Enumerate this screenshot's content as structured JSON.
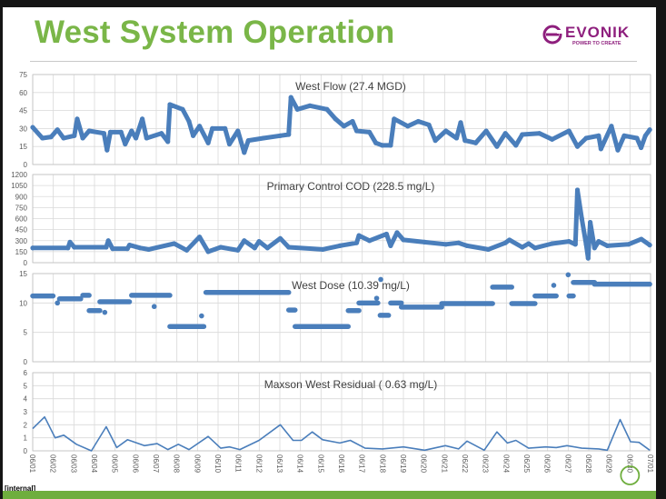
{
  "header": {
    "title": "West System Operation",
    "logo_word": "EVONIK",
    "logo_tagline": "POWER TO CREATE"
  },
  "footer": {
    "label": "[internal]"
  },
  "colors": {
    "series": "#4a7ebb",
    "title": "#7ab648",
    "brand": "#8e1f7d",
    "highlight": "#6fae3e"
  },
  "x_axis": {
    "labels": [
      "06/01",
      "06/02",
      "06/03",
      "06/04",
      "06/05",
      "06/06",
      "06/07",
      "06/08",
      "06/09",
      "06/10",
      "06/11",
      "06/12",
      "06/13",
      "06/14",
      "06/15",
      "06/16",
      "06/17",
      "06/18",
      "06/19",
      "06/20",
      "06/21",
      "06/22",
      "06/23",
      "06/24",
      "06/25",
      "06/26",
      "06/27",
      "06/28",
      "06/29",
      "06/30",
      "07/01"
    ],
    "highlighted": "06/30"
  },
  "chart_data": [
    {
      "type": "scatter",
      "title": "West Flow (27.4 MGD)",
      "ylim": [
        0,
        75
      ],
      "yticks": [
        "0",
        "15",
        "30",
        "45",
        "60",
        "75"
      ],
      "xunit": "days since 06/01",
      "points": [
        [
          0,
          31
        ],
        [
          0.47,
          22
        ],
        [
          0.89,
          23
        ],
        [
          1.2,
          29
        ],
        [
          1.5,
          22
        ],
        [
          2.02,
          24
        ],
        [
          2.16,
          38
        ],
        [
          2.43,
          22
        ],
        [
          2.74,
          28
        ],
        [
          3.46,
          26
        ],
        [
          3.61,
          12
        ],
        [
          3.77,
          27
        ],
        [
          4.29,
          27
        ],
        [
          4.49,
          17
        ],
        [
          4.8,
          28
        ],
        [
          5.01,
          22
        ],
        [
          5.32,
          38
        ],
        [
          5.53,
          22
        ],
        [
          6.25,
          26
        ],
        [
          6.56,
          19
        ],
        [
          6.66,
          50
        ],
        [
          7.28,
          46
        ],
        [
          7.59,
          36
        ],
        [
          7.79,
          24
        ],
        [
          8.1,
          32
        ],
        [
          8.52,
          18
        ],
        [
          8.72,
          30
        ],
        [
          9.34,
          30
        ],
        [
          9.55,
          17
        ],
        [
          9.96,
          28
        ],
        [
          10.27,
          10
        ],
        [
          10.47,
          20
        ],
        [
          11.2,
          22
        ],
        [
          12.02,
          24
        ],
        [
          12.43,
          25
        ],
        [
          12.54,
          56
        ],
        [
          12.85,
          46
        ],
        [
          13.46,
          49
        ],
        [
          14.29,
          46
        ],
        [
          14.7,
          38
        ],
        [
          15.11,
          32
        ],
        [
          15.53,
          36
        ],
        [
          15.73,
          28
        ],
        [
          16.35,
          27
        ],
        [
          16.66,
          18
        ],
        [
          16.97,
          16
        ],
        [
          17.38,
          16
        ],
        [
          17.55,
          38
        ],
        [
          18.21,
          32
        ],
        [
          18.72,
          36
        ],
        [
          19.24,
          33
        ],
        [
          19.55,
          20
        ],
        [
          20.06,
          28
        ],
        [
          20.58,
          22
        ],
        [
          20.78,
          35
        ],
        [
          20.99,
          20
        ],
        [
          21.51,
          18
        ],
        [
          22.02,
          28
        ],
        [
          22.54,
          15
        ],
        [
          22.95,
          26
        ],
        [
          23.46,
          16
        ],
        [
          23.77,
          25
        ],
        [
          24.6,
          26
        ],
        [
          25.22,
          21
        ],
        [
          26.04,
          28
        ],
        [
          26.45,
          15
        ],
        [
          26.87,
          22
        ],
        [
          27.48,
          24
        ],
        [
          27.59,
          13
        ],
        [
          28.1,
          32
        ],
        [
          28.41,
          12
        ],
        [
          28.72,
          24
        ],
        [
          29.34,
          22
        ],
        [
          29.54,
          14
        ],
        [
          29.75,
          24
        ],
        [
          29.96,
          29
        ]
      ]
    },
    {
      "type": "scatter",
      "title": "Primary Control COD (228.5 mg/L)",
      "ylim": [
        0,
        1200
      ],
      "yticks": [
        "0",
        "150",
        "300",
        "450",
        "600",
        "750",
        "900",
        "1050",
        "1200"
      ],
      "xunit": "days since 06/01",
      "points": [
        [
          0,
          200
        ],
        [
          1.71,
          200
        ],
        [
          1.81,
          280
        ],
        [
          2.02,
          210
        ],
        [
          3.57,
          210
        ],
        [
          3.67,
          300
        ],
        [
          3.88,
          190
        ],
        [
          4.6,
          190
        ],
        [
          4.7,
          240
        ],
        [
          5.22,
          200
        ],
        [
          5.63,
          180
        ],
        [
          6.87,
          260
        ],
        [
          7.48,
          170
        ],
        [
          8.1,
          350
        ],
        [
          8.52,
          150
        ],
        [
          9.13,
          210
        ],
        [
          9.96,
          170
        ],
        [
          10.27,
          300
        ],
        [
          10.78,
          200
        ],
        [
          10.99,
          290
        ],
        [
          11.4,
          200
        ],
        [
          12.02,
          330
        ],
        [
          12.43,
          210
        ],
        [
          14.08,
          180
        ],
        [
          14.91,
          230
        ],
        [
          15.73,
          270
        ],
        [
          15.84,
          370
        ],
        [
          16.35,
          300
        ],
        [
          17.18,
          390
        ],
        [
          17.38,
          230
        ],
        [
          17.69,
          410
        ],
        [
          18,
          310
        ],
        [
          19.03,
          280
        ],
        [
          20.06,
          250
        ],
        [
          20.68,
          270
        ],
        [
          21.09,
          230
        ],
        [
          22.12,
          180
        ],
        [
          22.95,
          270
        ],
        [
          23.15,
          310
        ],
        [
          23.77,
          210
        ],
        [
          24.08,
          260
        ],
        [
          24.39,
          200
        ],
        [
          25.22,
          260
        ],
        [
          26.04,
          290
        ],
        [
          26.35,
          250
        ],
        [
          26.45,
          990
        ],
        [
          26.66,
          600
        ],
        [
          26.87,
          250
        ],
        [
          26.97,
          60
        ],
        [
          27.07,
          550
        ],
        [
          27.28,
          200
        ],
        [
          27.48,
          290
        ],
        [
          27.9,
          230
        ],
        [
          28.93,
          250
        ],
        [
          29.55,
          320
        ],
        [
          29.96,
          240
        ]
      ]
    },
    {
      "type": "scatter",
      "title": "West Dose (10.39 mg/L)",
      "ylim": [
        0,
        15
      ],
      "yticks": [
        "0",
        "5",
        "10",
        "15"
      ],
      "xunit": "days since 06/01",
      "segments": [
        [
          0,
          0.99,
          11.2
        ],
        [
          1.3,
          2.33,
          10.7
        ],
        [
          2.43,
          2.74,
          11.3
        ],
        [
          2.74,
          3.26,
          8.7
        ],
        [
          3.26,
          4.7,
          10.2
        ],
        [
          4.8,
          6.66,
          11.3
        ],
        [
          6.66,
          8.31,
          6.0
        ],
        [
          8.41,
          12.43,
          11.8
        ],
        [
          12.43,
          12.74,
          8.8
        ],
        [
          12.74,
          15.32,
          6.0
        ],
        [
          15.32,
          15.84,
          8.7
        ],
        [
          15.84,
          16.76,
          10.0
        ],
        [
          16.87,
          17.28,
          7.9
        ],
        [
          17.38,
          17.9,
          10.0
        ],
        [
          17.9,
          19.86,
          9.3
        ],
        [
          19.86,
          22.33,
          9.9
        ],
        [
          22.33,
          23.26,
          12.7
        ],
        [
          23.26,
          24.39,
          9.9
        ],
        [
          24.39,
          25.42,
          11.2
        ],
        [
          26.04,
          26.25,
          11.2
        ],
        [
          26.25,
          27.28,
          13.5
        ],
        [
          27.28,
          29.96,
          13.2
        ]
      ],
      "outliers": [
        [
          26.0,
          14.8
        ],
        [
          16.9,
          14.0
        ],
        [
          16.7,
          10.8
        ],
        [
          5.9,
          9.4
        ],
        [
          3.5,
          8.4
        ],
        [
          8.2,
          7.8
        ],
        [
          1.2,
          10.0
        ],
        [
          25.3,
          13.0
        ]
      ]
    },
    {
      "type": "line",
      "title": "Maxson West Residual ( 0.63 mg/L)",
      "ylim": [
        0,
        6
      ],
      "yticks": [
        "0",
        "1",
        "2",
        "3",
        "4",
        "5",
        "6"
      ],
      "xunit": "days since 06/01",
      "points": [
        [
          0,
          1.7
        ],
        [
          0.58,
          2.6
        ],
        [
          1.09,
          1.0
        ],
        [
          1.51,
          1.2
        ],
        [
          2.12,
          0.5
        ],
        [
          2.85,
          0.0
        ],
        [
          3.57,
          1.85
        ],
        [
          4.08,
          0.25
        ],
        [
          4.6,
          0.85
        ],
        [
          5.42,
          0.4
        ],
        [
          6.04,
          0.55
        ],
        [
          6.56,
          0.1
        ],
        [
          7.07,
          0.5
        ],
        [
          7.59,
          0.1
        ],
        [
          8.52,
          1.1
        ],
        [
          9.13,
          0.2
        ],
        [
          9.55,
          0.3
        ],
        [
          10.06,
          0.1
        ],
        [
          10.99,
          0.8
        ],
        [
          12.02,
          2.0
        ],
        [
          12.64,
          0.8
        ],
        [
          13.05,
          0.8
        ],
        [
          13.57,
          1.45
        ],
        [
          14.08,
          0.85
        ],
        [
          14.91,
          0.6
        ],
        [
          15.42,
          0.8
        ],
        [
          16.14,
          0.2
        ],
        [
          16.97,
          0.15
        ],
        [
          18.0,
          0.3
        ],
        [
          19.03,
          0.05
        ],
        [
          20.04,
          0.4
        ],
        [
          20.68,
          0.15
        ],
        [
          21.09,
          0.75
        ],
        [
          21.92,
          0.05
        ],
        [
          22.54,
          1.45
        ],
        [
          23.05,
          0.6
        ],
        [
          23.46,
          0.8
        ],
        [
          24.08,
          0.2
        ],
        [
          24.91,
          0.3
        ],
        [
          25.42,
          0.25
        ],
        [
          25.94,
          0.4
        ],
        [
          26.66,
          0.2
        ],
        [
          27.48,
          0.15
        ],
        [
          27.9,
          0.05
        ],
        [
          28.52,
          2.4
        ],
        [
          29.03,
          0.7
        ],
        [
          29.44,
          0.65
        ],
        [
          29.96,
          0.05
        ]
      ]
    }
  ]
}
